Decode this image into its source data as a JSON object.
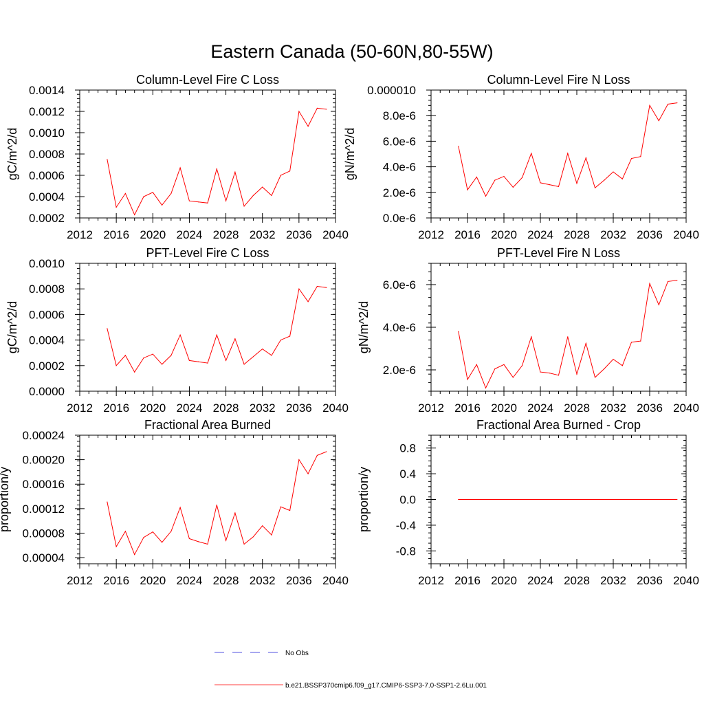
{
  "title": "Eastern Canada (50-60N,80-55W)",
  "legend": [
    {
      "label": "No Obs",
      "color": "#1a1ad8",
      "dash": "dashed"
    },
    {
      "label": "b.e21.BSSP370cmip6.f09_g17.CMIP6-SSP3-7.0-SSP1-2.6Lu.001",
      "color": "#ff0000",
      "dash": "solid"
    }
  ],
  "chart_data": [
    {
      "type": "line",
      "title": "Column-Level Fire C Loss",
      "ylabel": "gC/m^2/d",
      "xlim": [
        2012,
        2040
      ],
      "ylim": [
        0.0002,
        0.0014
      ],
      "xticks": [
        2012,
        2016,
        2020,
        2024,
        2028,
        2032,
        2036,
        2040
      ],
      "xtick_labels": [
        "2012",
        "2016",
        "2020",
        "2024",
        "2028",
        "2032",
        "2036",
        "2040"
      ],
      "yticks": [
        0.0002,
        0.0004,
        0.0006,
        0.0008,
        0.001,
        0.0012,
        0.0014
      ],
      "ytick_labels": [
        "0.0002",
        "0.0004",
        "0.0006",
        "0.0008",
        "0.0010",
        "0.0012",
        "0.0014"
      ],
      "x": [
        2015,
        2016,
        2017,
        2018,
        2019,
        2020,
        2021,
        2022,
        2023,
        2024,
        2025,
        2026,
        2027,
        2028,
        2029,
        2030,
        2031,
        2032,
        2033,
        2034,
        2035,
        2036,
        2037,
        2038,
        2039
      ],
      "series": [
        {
          "color": "#ff0000",
          "values": [
            0.00075,
            0.0003,
            0.00043,
            0.00023,
            0.0004,
            0.00044,
            0.00032,
            0.00043,
            0.00067,
            0.00036,
            0.00035,
            0.00034,
            0.00066,
            0.00036,
            0.00063,
            0.00031,
            0.00041,
            0.00049,
            0.00041,
            0.0006,
            0.00064,
            0.0012,
            0.00106,
            0.00123,
            0.00122
          ]
        }
      ]
    },
    {
      "type": "line",
      "title": "Column-Level Fire N Loss",
      "ylabel": "gN/m^2/d",
      "xlim": [
        2012,
        2040
      ],
      "ylim": [
        0,
        1e-05
      ],
      "xticks": [
        2012,
        2016,
        2020,
        2024,
        2028,
        2032,
        2036,
        2040
      ],
      "xtick_labels": [
        "2012",
        "2016",
        "2020",
        "2024",
        "2028",
        "2032",
        "2036",
        "2040"
      ],
      "yticks": [
        0,
        2e-06,
        4e-06,
        6e-06,
        8e-06,
        1e-05
      ],
      "ytick_labels": [
        "0.0e-6",
        "2.0e-6",
        "4.0e-6",
        "6.0e-6",
        "8.0e-6",
        "0.000010"
      ],
      "x": [
        2015,
        2016,
        2017,
        2018,
        2019,
        2020,
        2021,
        2022,
        2023,
        2024,
        2025,
        2026,
        2027,
        2028,
        2029,
        2030,
        2031,
        2032,
        2033,
        2034,
        2035,
        2036,
        2037,
        2038,
        2039
      ],
      "series": [
        {
          "color": "#ff0000",
          "values": [
            5.6e-06,
            2.2e-06,
            3.2e-06,
            1.7e-06,
            2.95e-06,
            3.25e-06,
            2.4e-06,
            3.15e-06,
            5.05e-06,
            2.75e-06,
            2.6e-06,
            2.45e-06,
            5.05e-06,
            2.7e-06,
            4.7e-06,
            2.35e-06,
            2.95e-06,
            3.6e-06,
            3.05e-06,
            4.65e-06,
            4.8e-06,
            8.8e-06,
            7.6e-06,
            8.9e-06,
            9e-06
          ]
        }
      ]
    },
    {
      "type": "line",
      "title": "PFT-Level Fire C Loss",
      "ylabel": "gC/m^2/d",
      "xlim": [
        2012,
        2040
      ],
      "ylim": [
        0,
        0.001
      ],
      "xticks": [
        2012,
        2016,
        2020,
        2024,
        2028,
        2032,
        2036,
        2040
      ],
      "xtick_labels": [
        "2012",
        "2016",
        "2020",
        "2024",
        "2028",
        "2032",
        "2036",
        "2040"
      ],
      "yticks": [
        0,
        0.0002,
        0.0004,
        0.0006,
        0.0008,
        0.001
      ],
      "ytick_labels": [
        "0.0000",
        "0.0002",
        "0.0004",
        "0.0006",
        "0.0008",
        "0.0010"
      ],
      "x": [
        2015,
        2016,
        2017,
        2018,
        2019,
        2020,
        2021,
        2022,
        2023,
        2024,
        2025,
        2026,
        2027,
        2028,
        2029,
        2030,
        2031,
        2032,
        2033,
        2034,
        2035,
        2036,
        2037,
        2038,
        2039
      ],
      "series": [
        {
          "color": "#ff0000",
          "values": [
            0.00049,
            0.0002,
            0.00028,
            0.00015,
            0.00026,
            0.00029,
            0.00021,
            0.00028,
            0.00044,
            0.00024,
            0.00023,
            0.00022,
            0.00044,
            0.00024,
            0.00041,
            0.00021,
            0.00027,
            0.00033,
            0.00028,
            0.0004,
            0.00043,
            0.0008,
            0.0007,
            0.00082,
            0.00081
          ]
        }
      ]
    },
    {
      "type": "line",
      "title": "PFT-Level Fire N Loss",
      "ylabel": "gN/m^2/d",
      "xlim": [
        2012,
        2040
      ],
      "ylim": [
        1e-06,
        7e-06
      ],
      "xticks": [
        2012,
        2016,
        2020,
        2024,
        2028,
        2032,
        2036,
        2040
      ],
      "xtick_labels": [
        "2012",
        "2016",
        "2020",
        "2024",
        "2028",
        "2032",
        "2036",
        "2040"
      ],
      "yticks": [
        2e-06,
        4e-06,
        6e-06
      ],
      "ytick_labels": [
        "2.0e-6",
        "4.0e-6",
        "6.0e-6"
      ],
      "x": [
        2015,
        2016,
        2017,
        2018,
        2019,
        2020,
        2021,
        2022,
        2023,
        2024,
        2025,
        2026,
        2027,
        2028,
        2029,
        2030,
        2031,
        2032,
        2033,
        2034,
        2035,
        2036,
        2037,
        2038,
        2039
      ],
      "series": [
        {
          "color": "#ff0000",
          "values": [
            3.8e-06,
            1.55e-06,
            2.25e-06,
            1.15e-06,
            2.05e-06,
            2.25e-06,
            1.65e-06,
            2.2e-06,
            3.55e-06,
            1.9e-06,
            1.85e-06,
            1.75e-06,
            3.55e-06,
            1.8e-06,
            3.25e-06,
            1.65e-06,
            2.05e-06,
            2.5e-06,
            2.2e-06,
            3.3e-06,
            3.35e-06,
            6.05e-06,
            5.05e-06,
            6.15e-06,
            6.2e-06
          ]
        }
      ]
    },
    {
      "type": "line",
      "title": "Fractional Area Burned",
      "ylabel": "proportion/y",
      "xlim": [
        2012,
        2040
      ],
      "ylim": [
        3e-05,
        0.00024
      ],
      "xticks": [
        2012,
        2016,
        2020,
        2024,
        2028,
        2032,
        2036,
        2040
      ],
      "xtick_labels": [
        "2012",
        "2016",
        "2020",
        "2024",
        "2028",
        "2032",
        "2036",
        "2040"
      ],
      "yticks": [
        4e-05,
        8e-05,
        0.00012,
        0.00016,
        0.0002,
        0.00024
      ],
      "ytick_labels": [
        "0.00004",
        "0.00008",
        "0.00012",
        "0.00016",
        "0.00020",
        "0.00024"
      ],
      "x": [
        2015,
        2016,
        2017,
        2018,
        2019,
        2020,
        2021,
        2022,
        2023,
        2024,
        2025,
        2026,
        2027,
        2028,
        2029,
        2030,
        2031,
        2032,
        2033,
        2034,
        2035,
        2036,
        2037,
        2038,
        2039
      ],
      "series": [
        {
          "color": "#ff0000",
          "values": [
            0.000131,
            5.8e-05,
            8.3e-05,
            4.5e-05,
            7.3e-05,
            8.2e-05,
            6.5e-05,
            8.3e-05,
            0.000122,
            7.1e-05,
            6.6e-05,
            6.2e-05,
            0.000126,
            6.8e-05,
            0.000113,
            6.2e-05,
            7.4e-05,
            9.2e-05,
            7.7e-05,
            0.000123,
            0.000117,
            0.0002,
            0.000177,
            0.000207,
            0.000213
          ]
        }
      ]
    },
    {
      "type": "line",
      "title": "Fractional Area Burned - Crop",
      "ylabel": "proportion/y",
      "xlim": [
        2012,
        2040
      ],
      "ylim": [
        -1,
        1
      ],
      "xticks": [
        2012,
        2016,
        2020,
        2024,
        2028,
        2032,
        2036,
        2040
      ],
      "xtick_labels": [
        "2012",
        "2016",
        "2020",
        "2024",
        "2028",
        "2032",
        "2036",
        "2040"
      ],
      "yticks": [
        -0.8,
        -0.4,
        0,
        0.4,
        0.8
      ],
      "ytick_labels": [
        "-0.8",
        "-0.4",
        "0.0",
        "0.4",
        "0.8"
      ],
      "x": [
        2015,
        2016,
        2017,
        2018,
        2019,
        2020,
        2021,
        2022,
        2023,
        2024,
        2025,
        2026,
        2027,
        2028,
        2029,
        2030,
        2031,
        2032,
        2033,
        2034,
        2035,
        2036,
        2037,
        2038,
        2039
      ],
      "series": [
        {
          "color": "#ff0000",
          "values": [
            0,
            0,
            0,
            0,
            0,
            0,
            0,
            0,
            0,
            0,
            0,
            0,
            0,
            0,
            0,
            0,
            0,
            0,
            0,
            0,
            0,
            0,
            0,
            0,
            0
          ]
        }
      ]
    }
  ]
}
